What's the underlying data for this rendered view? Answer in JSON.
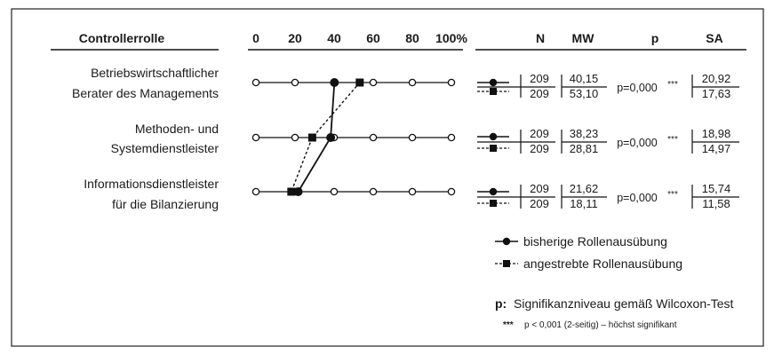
{
  "chart_data": {
    "type": "line",
    "title": "",
    "header": {
      "category_label": "Controllerrolle",
      "col_n": "N",
      "col_mw": "MW",
      "col_p": "p",
      "col_sa": "SA"
    },
    "x_ticks": [
      "0",
      "20",
      "40",
      "60",
      "80",
      "100%"
    ],
    "xlim": [
      0,
      100
    ],
    "categories": [
      {
        "line1": "Betriebswirtschaftlicher",
        "line2": "Berater des Managements"
      },
      {
        "line1": "Methoden- und",
        "line2": "Systemdienstleister"
      },
      {
        "line1": "Informationsdienstleister",
        "line2": "für die Bilanzierung"
      }
    ],
    "series": [
      {
        "name": "bisherige Rollenausübung",
        "style": "solid",
        "marker": "circle",
        "values": [
          40.15,
          38.23,
          21.62
        ]
      },
      {
        "name": "angestrebte Rollenausübung",
        "style": "dashed",
        "marker": "square",
        "values": [
          53.1,
          28.81,
          18.11
        ]
      }
    ],
    "stats": [
      {
        "n": [
          "209",
          "209"
        ],
        "mw": [
          "40,15",
          "53,10"
        ],
        "p": "p=0,000",
        "stars": "***",
        "sa": [
          "20,92",
          "17,63"
        ]
      },
      {
        "n": [
          "209",
          "209"
        ],
        "mw": [
          "38,23",
          "28,81"
        ],
        "p": "p=0,000",
        "stars": "***",
        "sa": [
          "18,98",
          "14,97"
        ]
      },
      {
        "n": [
          "209",
          "209"
        ],
        "mw": [
          "21,62",
          "18,11"
        ],
        "p": "p=0,000",
        "stars": "***",
        "sa": [
          "15,74",
          "11,58"
        ]
      }
    ],
    "legend": {
      "p_label": "p:",
      "p_text": "Signifikanzniveau gemäß Wilcoxon-Test",
      "stars_label": "***",
      "stars_text": "p < 0,001 (2-seitig) – höchst signifikant"
    }
  }
}
